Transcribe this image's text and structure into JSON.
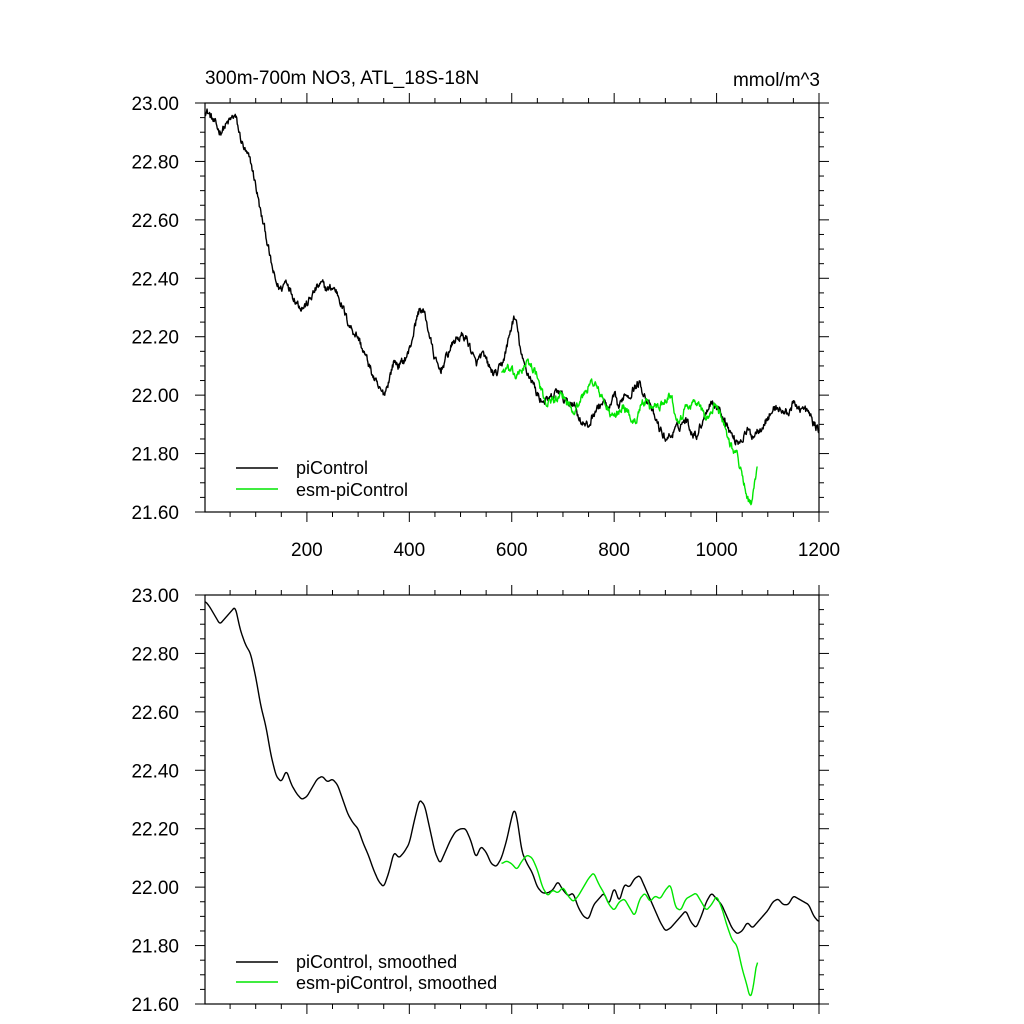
{
  "chart_data": [
    {
      "type": "line",
      "title": "300m-700m NO3, ATL_18S-18N",
      "units_label": "mmol/m^3",
      "xlabel": "",
      "ylabel": "",
      "xlim": [
        1,
        1200
      ],
      "ylim": [
        21.6,
        23.0
      ],
      "x_ticks": [
        200,
        400,
        600,
        800,
        1000,
        1200
      ],
      "y_ticks": [
        "23.00",
        "22.80",
        "22.60",
        "22.40",
        "22.20",
        "22.00",
        "21.80",
        "21.60"
      ],
      "legend_position": "bottom-left",
      "series": [
        {
          "name": "piControl",
          "color": "#000000",
          "noise": 0.012,
          "x": [
            1,
            10,
            30,
            40,
            60,
            70,
            80,
            90,
            100,
            110,
            120,
            130,
            140,
            150,
            160,
            170,
            180,
            190,
            200,
            210,
            220,
            230,
            240,
            250,
            260,
            270,
            280,
            290,
            300,
            310,
            320,
            330,
            340,
            350,
            360,
            370,
            380,
            390,
            400,
            410,
            420,
            430,
            440,
            450,
            460,
            470,
            480,
            490,
            500,
            510,
            520,
            530,
            540,
            550,
            560,
            570,
            580,
            590,
            600,
            605,
            610,
            620,
            630,
            640,
            650,
            660,
            670,
            680,
            690,
            700,
            710,
            720,
            730,
            740,
            750,
            760,
            770,
            780,
            790,
            800,
            810,
            820,
            830,
            840,
            850,
            860,
            870,
            880,
            890,
            900,
            910,
            920,
            930,
            940,
            950,
            960,
            970,
            980,
            990,
            1000,
            1010,
            1020,
            1030,
            1040,
            1050,
            1060,
            1070,
            1080,
            1090,
            1100,
            1110,
            1120,
            1130,
            1140,
            1150,
            1160,
            1170,
            1180,
            1190,
            1200
          ],
          "values": [
            22.98,
            22.96,
            22.9,
            22.92,
            22.96,
            22.88,
            22.83,
            22.8,
            22.72,
            22.62,
            22.55,
            22.45,
            22.38,
            22.36,
            22.4,
            22.35,
            22.32,
            22.3,
            22.31,
            22.34,
            22.37,
            22.38,
            22.36,
            22.37,
            22.35,
            22.3,
            22.25,
            22.22,
            22.2,
            22.15,
            22.11,
            22.06,
            22.02,
            22.0,
            22.05,
            22.12,
            22.1,
            22.12,
            22.15,
            22.23,
            22.3,
            22.28,
            22.2,
            22.12,
            22.08,
            22.12,
            22.16,
            22.19,
            22.2,
            22.2,
            22.16,
            22.1,
            22.14,
            22.12,
            22.08,
            22.07,
            22.1,
            22.16,
            22.24,
            22.27,
            22.24,
            22.12,
            22.08,
            22.05,
            22.0,
            21.98,
            21.98,
            21.99,
            22.02,
            21.99,
            21.97,
            21.98,
            21.93,
            21.9,
            21.89,
            21.94,
            21.96,
            21.98,
            21.94,
            22.0,
            21.95,
            22.01,
            22.0,
            22.03,
            22.04,
            22.0,
            21.96,
            21.92,
            21.88,
            21.85,
            21.86,
            21.88,
            21.9,
            21.92,
            21.88,
            21.86,
            21.9,
            21.95,
            21.98,
            21.96,
            21.94,
            21.9,
            21.86,
            21.84,
            21.85,
            21.88,
            21.86,
            21.88,
            21.9,
            21.92,
            21.95,
            21.96,
            21.94,
            21.94,
            21.97,
            21.96,
            21.95,
            21.94,
            21.9,
            21.88
          ]
        },
        {
          "name": "esm-piControl",
          "color": "#00e600",
          "noise": 0.012,
          "x": [
            580,
            590,
            600,
            610,
            620,
            630,
            640,
            650,
            660,
            670,
            680,
            690,
            700,
            710,
            720,
            730,
            740,
            750,
            760,
            770,
            780,
            790,
            800,
            810,
            820,
            830,
            840,
            850,
            860,
            870,
            880,
            890,
            900,
            910,
            920,
            930,
            940,
            950,
            960,
            970,
            980,
            990,
            1000,
            1010,
            1020,
            1030,
            1040,
            1050,
            1060,
            1065,
            1070,
            1080
          ],
          "values": [
            22.08,
            22.09,
            22.08,
            22.06,
            22.09,
            22.11,
            22.1,
            22.06,
            22.0,
            21.97,
            21.99,
            21.98,
            22.0,
            21.97,
            21.95,
            21.97,
            22.0,
            22.03,
            22.05,
            22.01,
            21.98,
            21.94,
            21.92,
            21.95,
            21.96,
            21.93,
            21.9,
            21.96,
            21.98,
            21.95,
            21.97,
            21.96,
            21.99,
            22.01,
            21.93,
            21.92,
            21.96,
            21.97,
            21.98,
            21.95,
            21.92,
            21.94,
            21.97,
            21.93,
            21.87,
            21.82,
            21.8,
            21.72,
            21.66,
            21.62,
            21.64,
            21.76
          ]
        }
      ]
    },
    {
      "type": "line",
      "title": "",
      "xlabel": "",
      "ylabel": "",
      "xlim": [
        1,
        1200
      ],
      "ylim": [
        21.6,
        23.0
      ],
      "y_ticks": [
        "23.00",
        "22.80",
        "22.60",
        "22.40",
        "22.20",
        "22.00",
        "21.80",
        "21.60"
      ],
      "legend_position": "bottom-left",
      "series": [
        {
          "name": "piControl, smoothed",
          "color": "#000000",
          "source_series": 0
        },
        {
          "name": "esm-piControl, smoothed",
          "color": "#00e600",
          "source_series": 1
        }
      ]
    }
  ]
}
